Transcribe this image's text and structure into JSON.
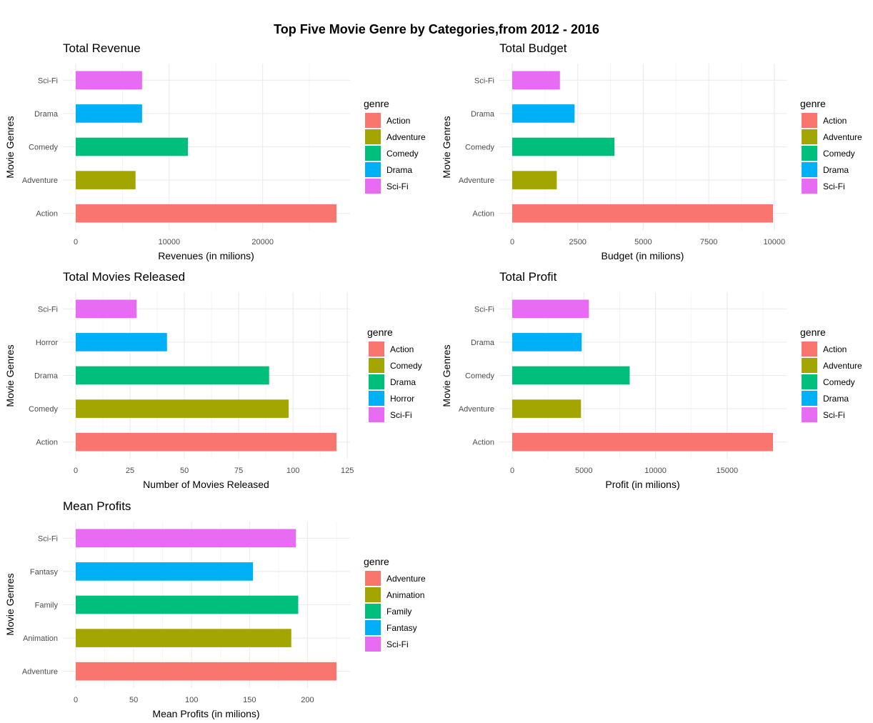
{
  "title": "Top Five Movie Genre by Categories,from 2012 - 2016",
  "chart_data": [
    {
      "type": "bar",
      "orientation": "horizontal",
      "title": "Total Revenue",
      "xlabel": "Revenues (in milions)",
      "ylabel": "Movie Genres",
      "categories": [
        "Action",
        "Adventure",
        "Comedy",
        "Drama",
        "Sci-Fi"
      ],
      "values": [
        27900,
        6400,
        12000,
        7100,
        7100
      ],
      "xlim": [
        0,
        27900
      ],
      "xticks": [
        0,
        10000,
        20000
      ],
      "legend_title": "genre",
      "legend": [
        "Action",
        "Adventure",
        "Comedy",
        "Drama",
        "Sci-Fi"
      ],
      "legend_position": "right",
      "grid": true
    },
    {
      "type": "bar",
      "orientation": "horizontal",
      "title": "Total Budget",
      "xlabel": "Budget (in milions)",
      "ylabel": "Movie Genres",
      "categories": [
        "Action",
        "Adventure",
        "Comedy",
        "Drama",
        "Sci-Fi"
      ],
      "values": [
        9950,
        1700,
        3900,
        2380,
        1820
      ],
      "xlim": [
        0,
        9950
      ],
      "xticks": [
        0,
        2500,
        5000,
        7500,
        10000
      ],
      "legend_title": "genre",
      "legend": [
        "Action",
        "Adventure",
        "Comedy",
        "Drama",
        "Sci-Fi"
      ],
      "legend_position": "right",
      "grid": true
    },
    {
      "type": "bar",
      "orientation": "horizontal",
      "title": "Total Movies Released",
      "xlabel": "Number of Movies Released",
      "ylabel": "Movie Genres",
      "categories": [
        "Action",
        "Comedy",
        "Drama",
        "Horror",
        "Sci-Fi"
      ],
      "values": [
        120,
        98,
        89,
        42,
        28
      ],
      "xlim": [
        0,
        120
      ],
      "xticks": [
        0,
        25,
        50,
        75,
        100,
        125
      ],
      "legend_title": "genre",
      "legend": [
        "Action",
        "Comedy",
        "Drama",
        "Horror",
        "Sci-Fi"
      ],
      "legend_position": "right",
      "grid": true
    },
    {
      "type": "bar",
      "orientation": "horizontal",
      "title": "Total Profit",
      "xlabel": "Profit (in milions)",
      "ylabel": "Movie Genres",
      "categories": [
        "Action",
        "Adventure",
        "Comedy",
        "Drama",
        "Sci-Fi"
      ],
      "values": [
        18200,
        4800,
        8200,
        4850,
        5350
      ],
      "xlim": [
        0,
        18200
      ],
      "xticks": [
        0,
        5000,
        10000,
        15000
      ],
      "legend_title": "genre",
      "legend": [
        "Action",
        "Adventure",
        "Comedy",
        "Drama",
        "Sci-Fi"
      ],
      "legend_position": "right",
      "grid": true
    },
    {
      "type": "bar",
      "orientation": "horizontal",
      "title": "Mean Profits",
      "xlabel": "Mean Profits (in milions)",
      "ylabel": "Movie Genres",
      "categories": [
        "Adventure",
        "Animation",
        "Family",
        "Fantasy",
        "Sci-Fi"
      ],
      "values": [
        225,
        186,
        192,
        153,
        190
      ],
      "xlim": [
        0,
        225
      ],
      "xticks": [
        0,
        50,
        100,
        150,
        200
      ],
      "legend_title": "genre",
      "legend": [
        "Adventure",
        "Animation",
        "Family",
        "Fantasy",
        "Sci-Fi"
      ],
      "legend_position": "right",
      "grid": true
    }
  ],
  "colors": [
    "#F8766D",
    "#A3A500",
    "#00BF7D",
    "#00B0F6",
    "#E76BF3"
  ]
}
